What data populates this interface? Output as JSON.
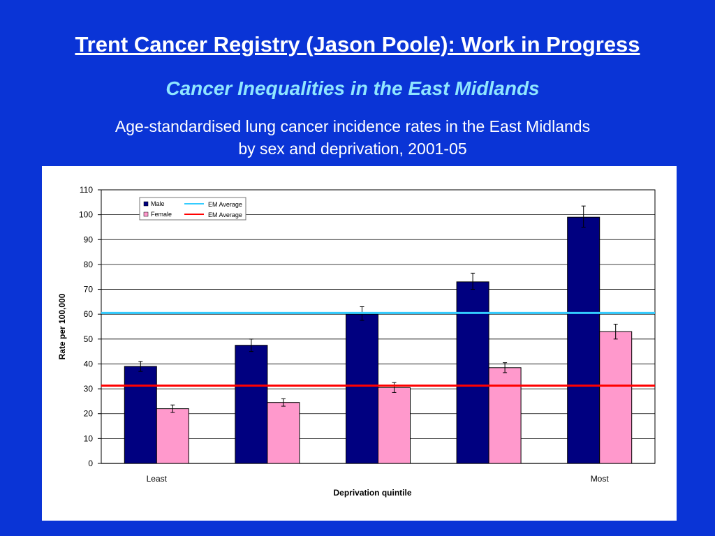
{
  "slide": {
    "title": "Trent Cancer Registry (Jason Poole): Work in Progress",
    "subtitle": "Cancer Inequalities in the East Midlands",
    "caption_line1": "Age-standardised lung cancer incidence rates in the East Midlands",
    "caption_line2": "by sex and deprivation, 2001-05"
  },
  "chart_data": {
    "type": "bar",
    "title": "Age-standardised lung cancer incidence rates in the East Midlands by sex and deprivation, 2001-05",
    "xlabel": "Deprivation quintile",
    "ylabel": "Rate per 100,000",
    "ylim": [
      0,
      110
    ],
    "yticks": [
      0,
      10,
      20,
      30,
      40,
      50,
      60,
      70,
      80,
      90,
      100,
      110
    ],
    "grid": true,
    "legend_position": "top-left",
    "categories": [
      "Least",
      "",
      "",
      "",
      "Most"
    ],
    "series": [
      {
        "name": "Male",
        "color": "#000080",
        "values": [
          39,
          47.5,
          60,
          73,
          99
        ],
        "error_low": [
          37,
          45,
          57.5,
          70,
          95
        ],
        "error_high": [
          41,
          50,
          63,
          76.5,
          103.5
        ]
      },
      {
        "name": "Female",
        "color": "#ff99cc",
        "values": [
          22,
          24.5,
          30.5,
          38.5,
          53
        ],
        "error_low": [
          20.5,
          23,
          28.5,
          36.5,
          50
        ],
        "error_high": [
          23.5,
          26,
          32.5,
          40.5,
          56
        ]
      }
    ],
    "reference_lines": [
      {
        "name": "EM Average",
        "color": "#33ccff",
        "value": 60.5,
        "series": "Male"
      },
      {
        "name": "EM Average",
        "color": "#ff0000",
        "value": 31.3,
        "series": "Female"
      }
    ]
  }
}
